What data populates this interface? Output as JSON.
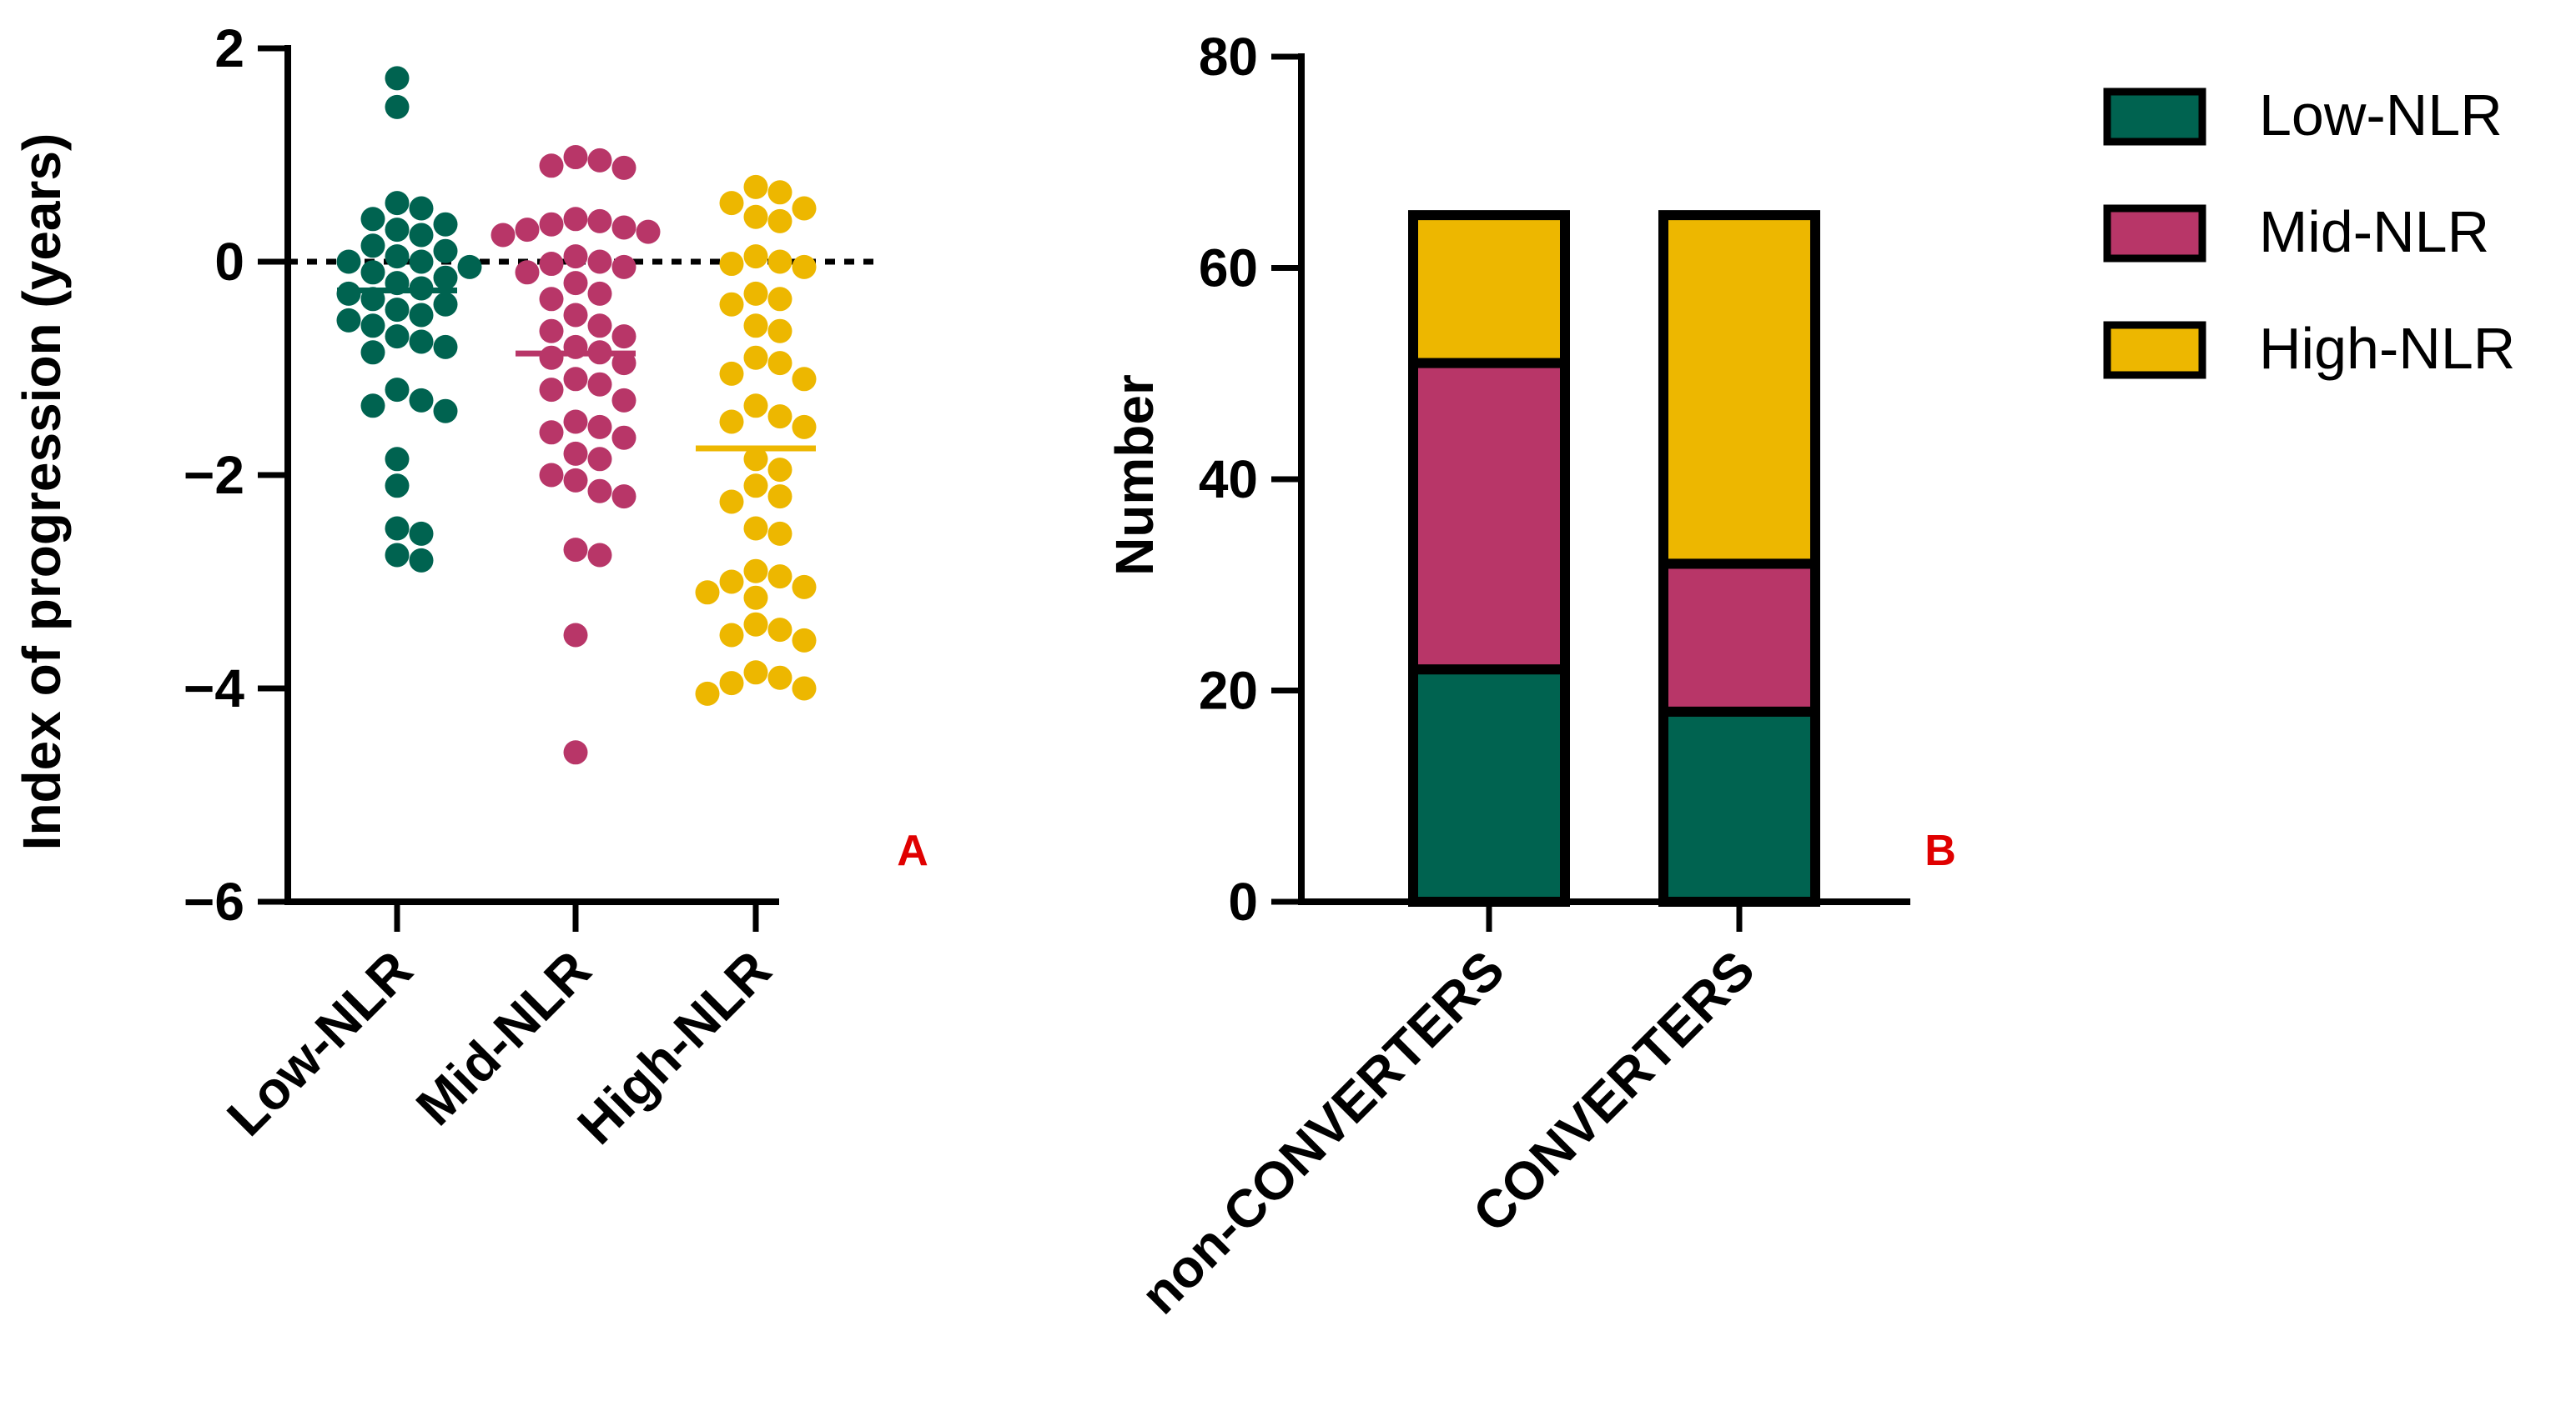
{
  "colors": {
    "low": "#006350",
    "mid": "#b83668",
    "high": "#edb700",
    "axis": "#000000",
    "panel_label": "#e00000"
  },
  "chart_data": [
    {
      "type": "scatter",
      "panel_label": "A",
      "ylabel": "Index of progression (years)",
      "xlabel": "",
      "ylim": [
        -6,
        2
      ],
      "yticks": [
        2,
        0,
        -2,
        -4,
        -6
      ],
      "ytick_labels": [
        "2",
        "0",
        "−2",
        "−4",
        "−6"
      ],
      "categories": [
        "Low-NLR",
        "Mid-NLR",
        "High-NLR"
      ],
      "reference_line": 0,
      "series": [
        {
          "name": "Low-NLR",
          "color": "#006350",
          "mean": -0.27,
          "values": [
            1.72,
            1.45,
            0.55,
            0.5,
            0.4,
            0.35,
            0.3,
            0.25,
            0.15,
            0.1,
            0.05,
            0.0,
            0.0,
            -0.05,
            -0.1,
            -0.15,
            -0.2,
            -0.25,
            -0.3,
            -0.35,
            -0.4,
            -0.45,
            -0.5,
            -0.55,
            -0.6,
            -0.7,
            -0.75,
            -0.8,
            -0.85,
            -1.2,
            -1.3,
            -1.35,
            -1.4,
            -1.85,
            -2.1,
            -2.5,
            -2.55,
            -2.75,
            -2.8
          ]
        },
        {
          "name": "Mid-NLR",
          "color": "#b83668",
          "mean": -0.86,
          "values": [
            0.98,
            0.95,
            0.9,
            0.88,
            0.4,
            0.38,
            0.35,
            0.32,
            0.3,
            0.28,
            0.25,
            0.05,
            0.0,
            -0.02,
            -0.05,
            -0.1,
            -0.2,
            -0.3,
            -0.35,
            -0.5,
            -0.6,
            -0.65,
            -0.7,
            -0.8,
            -0.85,
            -0.9,
            -0.95,
            -1.1,
            -1.15,
            -1.2,
            -1.3,
            -1.5,
            -1.55,
            -1.6,
            -1.65,
            -1.8,
            -1.85,
            -2.0,
            -2.05,
            -2.15,
            -2.2,
            -2.7,
            -2.75,
            -3.5,
            -4.6
          ]
        },
        {
          "name": "High-NLR",
          "color": "#edb700",
          "mean": -1.75,
          "values": [
            0.7,
            0.65,
            0.55,
            0.5,
            0.42,
            0.38,
            0.05,
            0.0,
            -0.02,
            -0.05,
            -0.3,
            -0.35,
            -0.4,
            -0.6,
            -0.65,
            -0.9,
            -0.95,
            -1.05,
            -1.1,
            -1.35,
            -1.45,
            -1.5,
            -1.55,
            -1.85,
            -1.95,
            -2.1,
            -2.2,
            -2.25,
            -2.5,
            -2.55,
            -2.9,
            -2.95,
            -3.0,
            -3.05,
            -3.1,
            -3.15,
            -3.4,
            -3.45,
            -3.5,
            -3.55,
            -3.85,
            -3.9,
            -3.95,
            -4.0,
            -4.05
          ]
        }
      ]
    },
    {
      "type": "bar",
      "stacked": true,
      "panel_label": "B",
      "ylabel": "Number",
      "xlabel": "",
      "ylim": [
        0,
        80
      ],
      "yticks": [
        0,
        20,
        40,
        60,
        80
      ],
      "categories": [
        "non-CONVERTERS",
        "CONVERTERS"
      ],
      "series": [
        {
          "name": "Low-NLR",
          "color": "#006350",
          "values": [
            22,
            18
          ]
        },
        {
          "name": "Mid-NLR",
          "color": "#b83668",
          "values": [
            29,
            14
          ]
        },
        {
          "name": "High-NLR",
          "color": "#edb700",
          "values": [
            14,
            33
          ]
        }
      ],
      "legend": {
        "position": "top-right",
        "items": [
          "Low-NLR",
          "Mid-NLR",
          "High-NLR"
        ]
      }
    }
  ]
}
